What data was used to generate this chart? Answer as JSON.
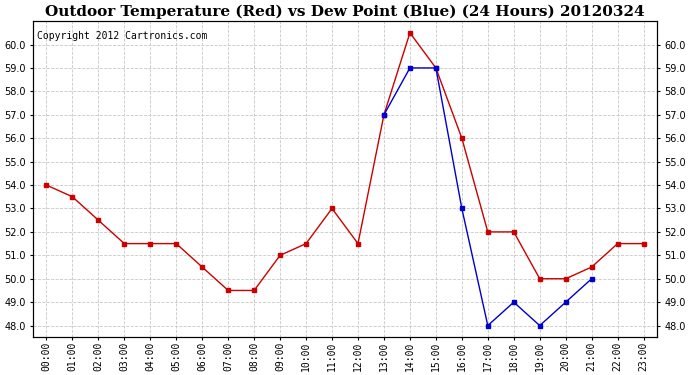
{
  "title": "Outdoor Temperature (Red) vs Dew Point (Blue) (24 Hours) 20120324",
  "copyright": "Copyright 2012 Cartronics.com",
  "x_labels": [
    "00:00",
    "01:00",
    "02:00",
    "03:00",
    "04:00",
    "05:00",
    "06:00",
    "07:00",
    "08:00",
    "09:00",
    "10:00",
    "11:00",
    "12:00",
    "13:00",
    "14:00",
    "15:00",
    "16:00",
    "17:00",
    "18:00",
    "19:00",
    "20:00",
    "21:00",
    "22:00",
    "23:00"
  ],
  "temp_red": [
    54.0,
    53.5,
    52.5,
    51.5,
    51.5,
    51.5,
    50.5,
    49.5,
    49.5,
    51.0,
    51.5,
    53.0,
    51.5,
    57.0,
    60.5,
    59.0,
    56.0,
    52.0,
    52.0,
    50.0,
    50.0,
    50.5,
    51.5,
    51.5
  ],
  "blue_x": [
    13,
    14,
    15,
    16,
    17,
    18,
    19,
    20,
    21
  ],
  "blue_y": [
    57.0,
    59.0,
    59.0,
    53.0,
    48.0,
    49.0,
    48.0,
    49.0,
    50.0
  ],
  "ylim_min": 47.5,
  "ylim_max": 61.0,
  "yticks": [
    48.0,
    49.0,
    50.0,
    51.0,
    52.0,
    53.0,
    54.0,
    55.0,
    56.0,
    57.0,
    58.0,
    59.0,
    60.0
  ],
  "red_color": "#cc0000",
  "blue_color": "#0000cc",
  "bg_color": "#ffffff",
  "grid_color": "#c8c8c8",
  "grid_style": "--",
  "title_fontsize": 11,
  "copyright_fontsize": 7,
  "tick_fontsize": 7,
  "marker": "s",
  "markersize": 3
}
